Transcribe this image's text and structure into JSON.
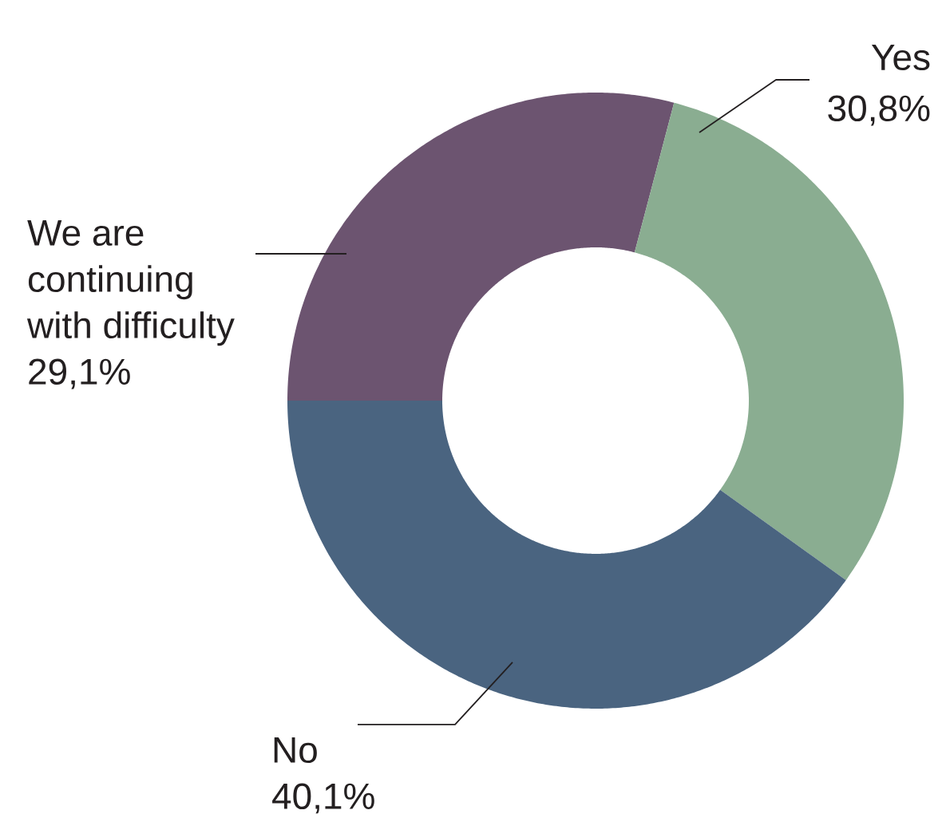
{
  "chart_data": {
    "type": "donut",
    "categories": [
      "We are continuing with difficulty",
      "Yes",
      "No"
    ],
    "values": [
      29.1,
      30.8,
      40.1
    ],
    "colors": [
      "#6c5470",
      "#8aad91",
      "#4a6480"
    ],
    "value_labels": [
      "29,1%",
      "30,8%",
      "40,1%"
    ]
  }
}
